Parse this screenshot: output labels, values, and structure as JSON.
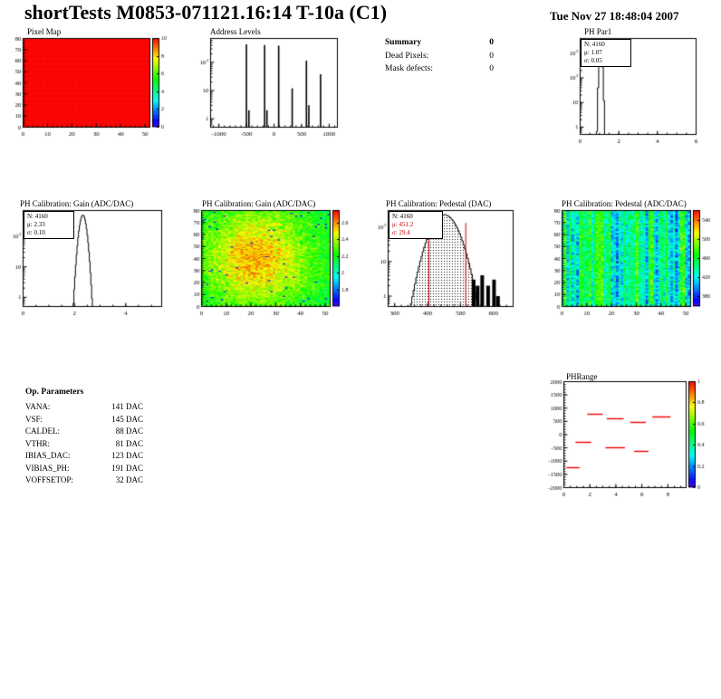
{
  "page": {
    "title": "shortTests M0853-071121.16:14 T-10a (C1)",
    "timestamp": "Tue Nov 27 18:48:04 2007"
  },
  "summary": {
    "heading": "Summary",
    "heading_value": "0",
    "rows": [
      {
        "label": "Dead Pixels:",
        "value": "0"
      },
      {
        "label": "Mask defects:",
        "value": "0"
      }
    ]
  },
  "op_parameters": {
    "heading": "Op. Parameters",
    "rows": [
      {
        "label": "VANA:",
        "value": "141 DAC"
      },
      {
        "label": "VSF:",
        "value": "145 DAC"
      },
      {
        "label": "CALDEL:",
        "value": "88 DAC"
      },
      {
        "label": "VTHR:",
        "value": "81 DAC"
      },
      {
        "label": "IBIAS_DAC:",
        "value": "123 DAC"
      },
      {
        "label": "VIBIAS_PH:",
        "value": "191 DAC"
      },
      {
        "label": "VOFFSETOP:",
        "value": "32 DAC"
      }
    ]
  },
  "chart_data": [
    {
      "id": "pixel_map",
      "type": "heatmap",
      "title": "Pixel Map",
      "xlim": [
        0,
        52
      ],
      "ylim": [
        0,
        80
      ],
      "zlim": [
        0,
        10
      ],
      "x_ticks": [
        0,
        10,
        20,
        30,
        40,
        50
      ],
      "y_ticks": [
        0,
        10,
        20,
        30,
        40,
        50,
        60,
        70,
        80
      ],
      "x_minor": 2,
      "y_minor": 2,
      "nx": 52,
      "ny": 80,
      "pattern": "uniform",
      "uniform_value": 10,
      "palette": "rainbow",
      "colorbar_ticks": [
        0,
        2,
        4,
        6,
        8,
        10
      ],
      "seed": 11
    },
    {
      "id": "address_levels",
      "type": "spike-histogram",
      "title": "Address Levels",
      "xlim": [
        -1150,
        1150
      ],
      "x_ticks": [
        -1000,
        -500,
        0,
        500,
        1000
      ],
      "x_minor": 100,
      "ylog": true,
      "ylim": [
        0.5,
        700
      ],
      "spikes": [
        {
          "x": -500,
          "count": 430
        },
        {
          "x": -455,
          "count": 2
        },
        {
          "x": -170,
          "count": 410
        },
        {
          "x": -128,
          "count": 2
        },
        {
          "x": 85,
          "count": 390
        },
        {
          "x": 330,
          "count": 12
        },
        {
          "x": 588,
          "count": 115
        },
        {
          "x": 632,
          "count": 3
        },
        {
          "x": 845,
          "count": 38
        }
      ]
    },
    {
      "id": "ph_par1",
      "type": "gauss-histogram",
      "title": "PH Par1",
      "stats": {
        "n": "N: 4160",
        "mu": "μ: 1.07",
        "sigma": "σ: 0.05"
      },
      "xlim": [
        0,
        6
      ],
      "x_ticks": [
        0,
        2,
        4,
        6
      ],
      "x_minor": 0.5,
      "ylog": true,
      "ylim": [
        0.5,
        4000
      ],
      "gauss": {
        "mu": 1.07,
        "sigma": 0.05,
        "n": 4160,
        "bin": 0.06
      }
    },
    {
      "id": "gain_dist",
      "type": "gauss-histogram",
      "title": "PH Calibration: Gain (ADC/DAC)",
      "stats": {
        "n": "N: 4160",
        "mu": "μ: 2.33",
        "sigma": "σ: 0.10"
      },
      "xlim": [
        0,
        5.4
      ],
      "x_ticks": [
        0,
        2,
        4
      ],
      "x_minor": 0.5,
      "ylog": true,
      "ylim": [
        0.5,
        700
      ],
      "gauss": {
        "mu": 2.33,
        "sigma": 0.1,
        "n": 4160,
        "bin": 0.03
      }
    },
    {
      "id": "gain_map",
      "type": "heatmap",
      "title": "PH Calibration: Gain (ADC/DAC)",
      "xlim": [
        0,
        52
      ],
      "ylim": [
        0,
        80
      ],
      "zlim": [
        1.6,
        2.75
      ],
      "x_ticks": [
        0,
        10,
        20,
        30,
        40,
        50
      ],
      "y_ticks": [
        0,
        10,
        20,
        30,
        40,
        50,
        60,
        70,
        80
      ],
      "x_minor": 2,
      "y_minor": 2,
      "nx": 52,
      "ny": 80,
      "pattern": "blob",
      "base": 2.14,
      "blob_amp": 0.42,
      "blob_cx": 22,
      "blob_cy": 40,
      "blob_sx": 16,
      "blob_sy": 30,
      "noise": 0.17,
      "speck_p": 0.012,
      "speck_v": 1.72,
      "palette": "rainbow",
      "colorbar_ticks": [
        1.8,
        2,
        2.2,
        2.4,
        2.6
      ],
      "seed": 23
    },
    {
      "id": "pedestal_dist",
      "type": "gauss-histogram",
      "title": "PH Calibration: Pedestal (DAC)",
      "stats": {
        "n": "N: 4160",
        "mu": "μ: 451.2",
        "sigma": "σ: 29.4",
        "value_color": "#cc0000"
      },
      "xlim": [
        280,
        660
      ],
      "x_ticks": [
        300,
        400,
        500,
        600
      ],
      "x_minor": 20,
      "ylog": true,
      "ylim": [
        0.5,
        300
      ],
      "gauss": {
        "mu": 451.2,
        "sigma": 29.4,
        "n": 4160,
        "bin": 4
      },
      "fill": "dots",
      "marker_lines": [
        404,
        516
      ],
      "marker_color": "#cc0000",
      "outliers": [
        {
          "x": 540,
          "count": 3
        },
        {
          "x": 552,
          "count": 2
        },
        {
          "x": 566,
          "count": 4
        },
        {
          "x": 584,
          "count": 2
        },
        {
          "x": 602,
          "count": 3
        },
        {
          "x": 614,
          "count": 1
        }
      ]
    },
    {
      "id": "pedestal_map",
      "type": "heatmap",
      "title": "PH Calibration: Pedestal (ADC/DAC)",
      "xlim": [
        0,
        52
      ],
      "ylim": [
        0,
        80
      ],
      "zlim": [
        360,
        560
      ],
      "x_ticks": [
        0,
        10,
        20,
        30,
        40,
        50
      ],
      "y_ticks": [
        0,
        10,
        20,
        30,
        40,
        50,
        60,
        70,
        80
      ],
      "x_minor": 2,
      "y_minor": 2,
      "nx": 52,
      "ny": 80,
      "pattern": "stripes",
      "base": 438,
      "stripe_amp": 38,
      "noise": 26,
      "palette": "rainbow",
      "colorbar_ticks": [
        380,
        420,
        460,
        500,
        540
      ],
      "seed": 37
    },
    {
      "id": "ph_range",
      "type": "segments",
      "title": "PHRange",
      "xlim": [
        0,
        9.4
      ],
      "x_ticks": [
        0,
        2,
        4,
        6,
        8
      ],
      "x_minor": 0.5,
      "ylim": [
        -2000,
        2000
      ],
      "y_ticks": [
        2000,
        1500,
        1000,
        500,
        0,
        -500,
        -1000,
        -1500,
        -2000
      ],
      "y_minor": 100,
      "segments": [
        {
          "x1": 1.8,
          "x2": 3.0,
          "y": 800
        },
        {
          "x1": 3.3,
          "x2": 4.6,
          "y": 600
        },
        {
          "x1": 5.1,
          "x2": 6.3,
          "y": 465
        },
        {
          "x1": 6.8,
          "x2": 8.2,
          "y": 700
        },
        {
          "x1": 0.9,
          "x2": 2.1,
          "y": -260
        },
        {
          "x1": 3.2,
          "x2": 4.7,
          "y": -465
        },
        {
          "x1": 5.4,
          "x2": 6.5,
          "y": -600
        },
        {
          "x1": 0.2,
          "x2": 1.2,
          "y": -1220
        }
      ],
      "segment_color": "#ee0000",
      "zlim": [
        0,
        1
      ],
      "palette": "rainbow",
      "colorbar_ticks": [
        0,
        0.2,
        0.4,
        0.6,
        0.8,
        1
      ],
      "seed": 5
    }
  ]
}
